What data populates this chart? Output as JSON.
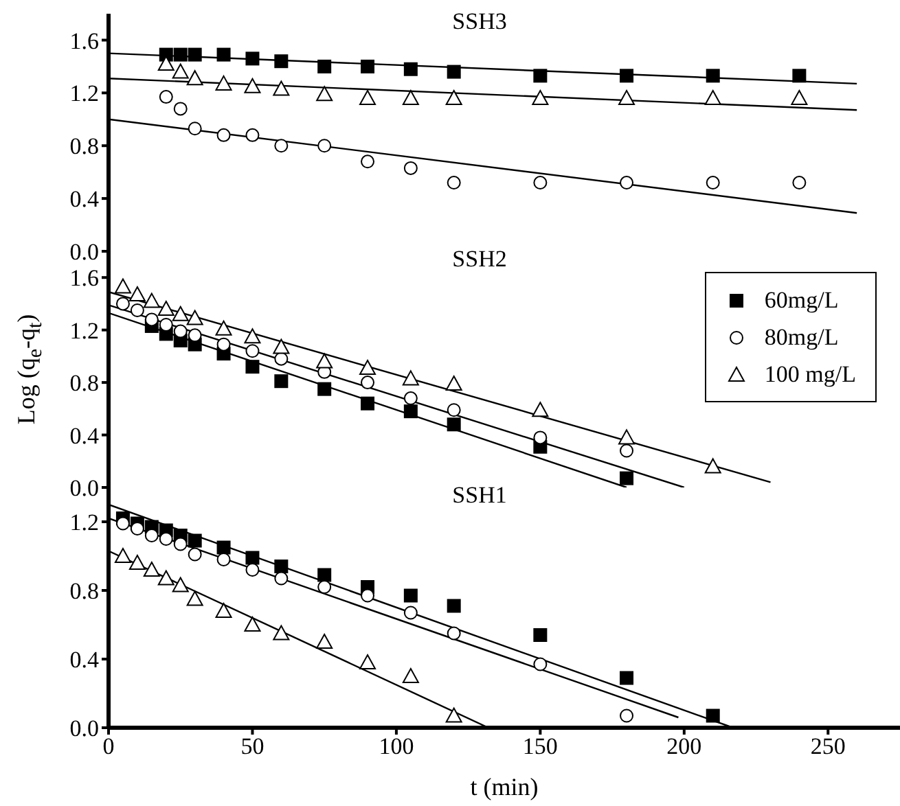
{
  "chart_data": [
    {
      "type": "scatter",
      "title": "SSH3",
      "xlim": [
        0,
        275
      ],
      "xticks": [
        0,
        50,
        100,
        150,
        200,
        250
      ],
      "ylim": [
        0,
        1.8
      ],
      "yticks": [
        {
          "value": 0,
          "label": "0.0"
        },
        {
          "value": 0.4,
          "label": "0.4"
        },
        {
          "value": 0.8,
          "label": "0.8"
        },
        {
          "value": 1.2,
          "label": "1.2"
        },
        {
          "value": 1.6,
          "label": "1.6"
        }
      ],
      "tick_labels": "y",
      "series": [
        {
          "marker": "square",
          "color": "#000000",
          "x": [
            20,
            25,
            30,
            40,
            50,
            60,
            75,
            90,
            105,
            120,
            150,
            180,
            210,
            240
          ],
          "values": [
            1.49,
            1.49,
            1.49,
            1.49,
            1.46,
            1.44,
            1.4,
            1.4,
            1.38,
            1.36,
            1.33,
            1.33,
            1.33,
            1.33
          ]
        },
        {
          "marker": "circle",
          "color": "#000000",
          "x": [
            20,
            25,
            30,
            40,
            50,
            60,
            75,
            90,
            105,
            120,
            150,
            180,
            210,
            240
          ],
          "values": [
            1.17,
            1.08,
            0.93,
            0.88,
            0.88,
            0.8,
            0.8,
            0.68,
            0.63,
            0.52,
            0.52,
            0.52,
            0.52,
            0.52
          ]
        },
        {
          "marker": "triangle",
          "color": "#000000",
          "x": [
            20,
            25,
            30,
            40,
            50,
            60,
            75,
            90,
            105,
            120,
            150,
            180,
            210,
            240
          ],
          "values": [
            1.42,
            1.36,
            1.31,
            1.27,
            1.25,
            1.23,
            1.19,
            1.16,
            1.16,
            1.16,
            1.16,
            1.16,
            1.16,
            1.16
          ]
        },
        {
          "type": "line",
          "marker": "none",
          "color": "#000000",
          "x": [
            0,
            260
          ],
          "values": [
            1.5,
            1.27
          ]
        },
        {
          "type": "line",
          "marker": "none",
          "color": "#000000",
          "x": [
            0,
            260
          ],
          "values": [
            1.0,
            0.29
          ]
        },
        {
          "type": "line",
          "marker": "none",
          "color": "#000000",
          "x": [
            0,
            260
          ],
          "values": [
            1.31,
            1.07
          ]
        }
      ]
    },
    {
      "type": "scatter",
      "title": "SSH2",
      "ylabel": "Log (q$_{e}$-q$_{t}$)",
      "legend": "top right",
      "xlim": [
        0,
        275
      ],
      "xticks": [
        0,
        50,
        100,
        150,
        200,
        250
      ],
      "ylim": [
        0,
        1.8
      ],
      "yticks": [
        {
          "value": 0,
          "label": "0.0"
        },
        {
          "value": 0.4,
          "label": "0.4"
        },
        {
          "value": 0.8,
          "label": "0.8"
        },
        {
          "value": 1.2,
          "label": "1.2"
        },
        {
          "value": 1.6,
          "label": "1.6"
        }
      ],
      "tick_labels": "y",
      "series": [
        {
          "name": "60mg/L",
          "marker": "square",
          "color": "#000000",
          "x": [
            15,
            20,
            25,
            30,
            40,
            50,
            60,
            75,
            90,
            105,
            120,
            150,
            180
          ],
          "values": [
            1.23,
            1.17,
            1.12,
            1.09,
            1.02,
            0.92,
            0.81,
            0.75,
            0.64,
            0.58,
            0.48,
            0.31,
            0.07
          ]
        },
        {
          "name": "80mg/L",
          "marker": "circle",
          "color": "#000000",
          "x": [
            5,
            10,
            15,
            20,
            25,
            30,
            40,
            50,
            60,
            75,
            90,
            105,
            120,
            150,
            180
          ],
          "values": [
            1.4,
            1.35,
            1.28,
            1.24,
            1.19,
            1.16,
            1.09,
            1.04,
            0.98,
            0.88,
            0.8,
            0.68,
            0.59,
            0.38,
            0.28
          ]
        },
        {
          "name": "100 mg/L",
          "marker": "triangle",
          "color": "#000000",
          "x": [
            5,
            10,
            15,
            20,
            25,
            30,
            40,
            50,
            60,
            75,
            90,
            105,
            120,
            150,
            180,
            210
          ],
          "values": [
            1.53,
            1.47,
            1.42,
            1.36,
            1.32,
            1.29,
            1.21,
            1.15,
            1.07,
            0.96,
            0.91,
            0.83,
            0.79,
            0.59,
            0.38,
            0.16
          ]
        },
        {
          "type": "line",
          "marker": "none",
          "color": "#000000",
          "x": [
            0,
            180
          ],
          "values": [
            1.33,
            0.0
          ]
        },
        {
          "type": "line",
          "marker": "none",
          "color": "#000000",
          "x": [
            0,
            200
          ],
          "values": [
            1.39,
            0.0
          ]
        },
        {
          "type": "line",
          "marker": "none",
          "color": "#000000",
          "x": [
            0,
            230
          ],
          "values": [
            1.49,
            0.04
          ]
        }
      ]
    },
    {
      "type": "scatter",
      "title": "SSH1",
      "xlabel": "t (min)",
      "xlim": [
        0,
        275
      ],
      "xticks": [
        0,
        50,
        100,
        150,
        200,
        250
      ],
      "ylim": [
        0,
        1.4
      ],
      "yticks": [
        {
          "value": 0,
          "label": "0.0"
        },
        {
          "value": 0.4,
          "label": "0.4"
        },
        {
          "value": 0.8,
          "label": "0.8"
        },
        {
          "value": 1.2,
          "label": "1.2"
        }
      ],
      "series": [
        {
          "marker": "square",
          "color": "#000000",
          "x": [
            5,
            10,
            15,
            20,
            25,
            30,
            40,
            50,
            60,
            75,
            90,
            105,
            120,
            150,
            180,
            210
          ],
          "values": [
            1.22,
            1.19,
            1.17,
            1.15,
            1.12,
            1.09,
            1.05,
            0.99,
            0.94,
            0.89,
            0.82,
            0.77,
            0.71,
            0.54,
            0.29,
            0.07
          ]
        },
        {
          "marker": "circle",
          "color": "#000000",
          "x": [
            5,
            10,
            15,
            20,
            25,
            30,
            40,
            50,
            60,
            75,
            90,
            105,
            120,
            150,
            180
          ],
          "values": [
            1.19,
            1.16,
            1.12,
            1.1,
            1.07,
            1.01,
            0.98,
            0.92,
            0.87,
            0.82,
            0.77,
            0.67,
            0.55,
            0.37,
            0.07
          ]
        },
        {
          "marker": "triangle",
          "color": "#000000",
          "x": [
            5,
            10,
            15,
            20,
            25,
            30,
            40,
            50,
            60,
            75,
            90,
            105,
            120
          ],
          "values": [
            1.0,
            0.96,
            0.92,
            0.87,
            0.83,
            0.75,
            0.68,
            0.6,
            0.55,
            0.5,
            0.38,
            0.3,
            0.07
          ]
        },
        {
          "type": "line",
          "marker": "none",
          "color": "#000000",
          "x": [
            0,
            217
          ],
          "values": [
            1.3,
            0.0
          ]
        },
        {
          "type": "line",
          "marker": "none",
          "color": "#000000",
          "x": [
            0,
            198
          ],
          "values": [
            1.22,
            0.06
          ]
        },
        {
          "type": "line",
          "marker": "none",
          "color": "#000000",
          "x": [
            0,
            132
          ],
          "values": [
            1.03,
            0.0
          ]
        }
      ]
    }
  ]
}
